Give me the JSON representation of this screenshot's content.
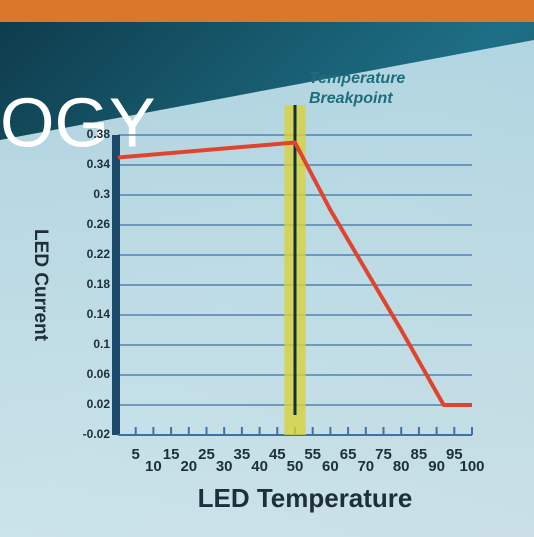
{
  "banner": "OGY",
  "chart_data": {
    "type": "line",
    "ylabel": "LED Current",
    "xlabel": "LED Temperature",
    "annotation": [
      "Temperature",
      "Breakpoint"
    ],
    "x": [
      0,
      50,
      60,
      70,
      80,
      92,
      100
    ],
    "series": [
      {
        "color": "#e0442e",
        "values": [
          0.35,
          0.37,
          0.28,
          0.2,
          0.12,
          0.02,
          0.02
        ]
      }
    ],
    "breakpoint": {
      "x": 50,
      "band": [
        47,
        53
      ],
      "color": "#d8d23a",
      "line_color": "#10303a"
    },
    "xlim": [
      0,
      100
    ],
    "xticks": [
      5,
      10,
      15,
      20,
      25,
      30,
      35,
      40,
      45,
      50,
      55,
      60,
      65,
      70,
      75,
      80,
      85,
      90,
      95,
      100
    ],
    "ylim": [
      -0.02,
      0.38
    ],
    "yticks": [
      -0.02,
      0.02,
      0.06,
      0.1,
      0.14,
      0.18,
      0.22,
      0.26,
      0.3,
      0.34,
      0.38
    ],
    "grid": true
  }
}
